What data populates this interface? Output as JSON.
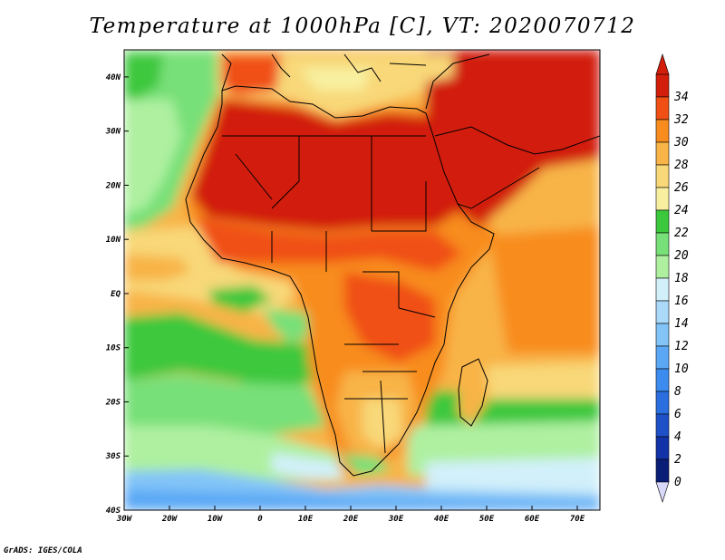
{
  "title": "Temperature at 1000hPa [C], VT: 2020070712",
  "credit": "GrADS: IGES/COLA",
  "map": {
    "lon_range": [
      -30,
      75
    ],
    "lat_range": [
      -40,
      45
    ],
    "x_ticks": [
      "30W",
      "20W",
      "10W",
      "0",
      "10E",
      "20E",
      "30E",
      "40E",
      "50E",
      "60E",
      "70E"
    ],
    "x_tick_lons": [
      -30,
      -20,
      -10,
      0,
      10,
      20,
      30,
      40,
      50,
      60,
      70
    ],
    "y_ticks": [
      "40S",
      "30S",
      "20S",
      "10S",
      "EQ",
      "10N",
      "20N",
      "30N",
      "40N"
    ],
    "y_tick_lats": [
      -40,
      -30,
      -20,
      -10,
      0,
      10,
      20,
      30,
      40
    ]
  },
  "colorbar": {
    "labels": [
      "0",
      "2",
      "4",
      "6",
      "8",
      "10",
      "12",
      "14",
      "16",
      "18",
      "20",
      "22",
      "24",
      "26",
      "28",
      "30",
      "32",
      "34"
    ],
    "colors": [
      "#0a1e78",
      "#1232a8",
      "#1e50c8",
      "#2a6ee0",
      "#3c8cf0",
      "#5aa8f5",
      "#82c4f8",
      "#aad9fa",
      "#d2f0fa",
      "#aef0a0",
      "#78e078",
      "#3cc83c",
      "#f8f0a0",
      "#f8d878",
      "#f8b446",
      "#f88c1e",
      "#f05014",
      "#d21e0a"
    ]
  }
}
